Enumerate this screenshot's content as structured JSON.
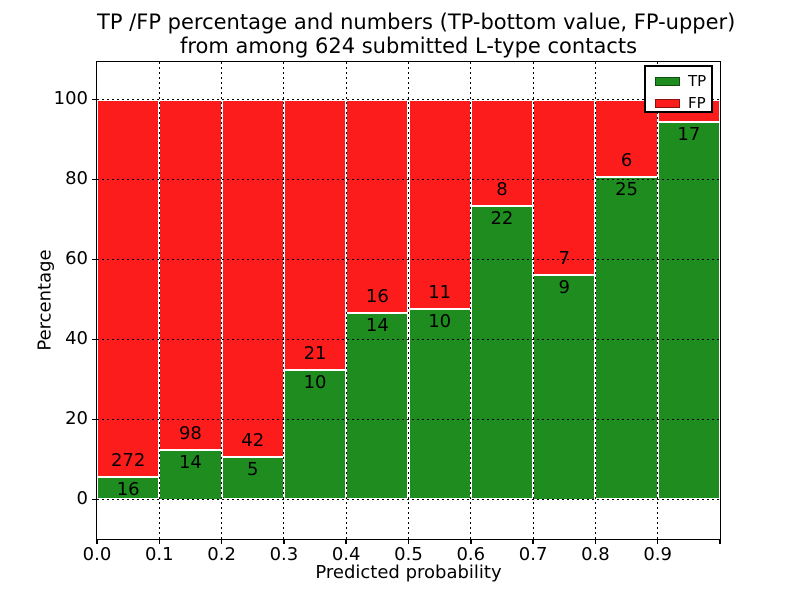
{
  "chart_data": {
    "type": "bar",
    "variant": "stacked-percentage",
    "title_line1": "TP /FP percentage and numbers (TP-bottom value, FP-upper)",
    "title_line2": "from among 624 submitted L-type contacts",
    "xlabel": "Predicted probability",
    "ylabel": "Percentage",
    "total_submitted_contacts": 624,
    "xlim": [
      0.0,
      1.0
    ],
    "ylim_percent": [
      0,
      100
    ],
    "grid": "dotted-black-on",
    "x_tick_labels": [
      "0.0",
      "0.1",
      "0.2",
      "0.3",
      "0.4",
      "0.5",
      "0.6",
      "0.7",
      "0.8",
      "0.9"
    ],
    "y_tick_values": [
      0,
      20,
      40,
      60,
      80,
      100
    ],
    "y_tick_labels": [
      "0",
      "20",
      "40",
      "60",
      "80",
      "100"
    ],
    "legend": {
      "position": "upper-right",
      "entries": [
        {
          "label": "TP",
          "color": "#1e8c1e"
        },
        {
          "label": "FP",
          "color": "#fd1c1c"
        }
      ]
    },
    "colors": {
      "tp": "#1e8c1e",
      "fp": "#fd1c1c",
      "bar_edge": "#ffffff",
      "grid": "#000000"
    },
    "bins": [
      {
        "range": "0.0-0.1",
        "tp": 16,
        "fp": 272,
        "tp_percent": 5.56
      },
      {
        "range": "0.1-0.2",
        "tp": 14,
        "fp": 98,
        "tp_percent": 12.5
      },
      {
        "range": "0.2-0.3",
        "tp": 5,
        "fp": 42,
        "tp_percent": 10.64
      },
      {
        "range": "0.3-0.4",
        "tp": 10,
        "fp": 21,
        "tp_percent": 32.26
      },
      {
        "range": "0.4-0.5",
        "tp": 14,
        "fp": 16,
        "tp_percent": 46.67
      },
      {
        "range": "0.5-0.6",
        "tp": 10,
        "fp": 11,
        "tp_percent": 47.62
      },
      {
        "range": "0.6-0.7",
        "tp": 22,
        "fp": 8,
        "tp_percent": 73.33
      },
      {
        "range": "0.7-0.8",
        "tp": 9,
        "fp": 7,
        "tp_percent": 56.25
      },
      {
        "range": "0.8-0.9",
        "tp": 25,
        "fp": 6,
        "tp_percent": 80.65
      },
      {
        "range": "0.9-1.0",
        "tp": 17,
        "fp": null,
        "tp_percent": 94.44
      }
    ]
  }
}
